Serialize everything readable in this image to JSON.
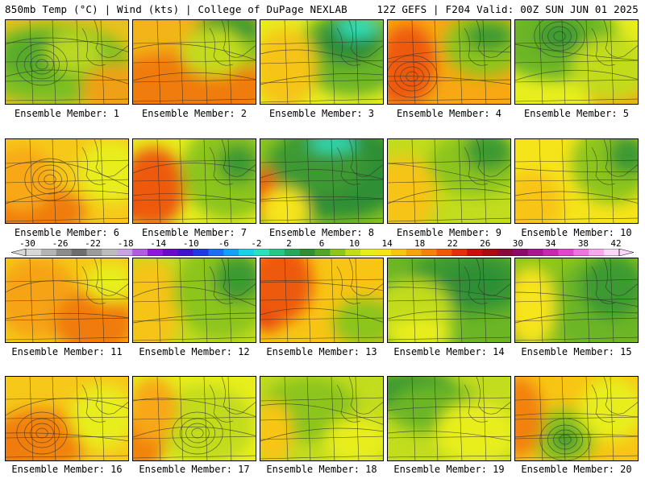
{
  "header": {
    "left_title": "850mb Temp (°C) | Wind (kts) | College of DuPage NEXLAB",
    "right_title": "12Z GEFS | F204 Valid: 00Z SUN JUN 01 2025"
  },
  "colorbar": {
    "ticks": [
      "-30",
      "-26",
      "-22",
      "-18",
      "-14",
      "-10",
      "-6",
      "-2",
      "2",
      "6",
      "10",
      "14",
      "18",
      "22",
      "26",
      "30",
      "34",
      "38",
      "42"
    ],
    "colors": [
      "#d8d8d8",
      "#b4b4b4",
      "#8c8c8c",
      "#6e6e6e",
      "#9b9b9b",
      "#bdbdbd",
      "#c9a3e6",
      "#b15de0",
      "#8f19d6",
      "#6b0bc8",
      "#3f14c8",
      "#1f3be0",
      "#1a6ef0",
      "#15a0f5",
      "#1bd0e6",
      "#2de0bb",
      "#29c68a",
      "#27a85c",
      "#2f8f34",
      "#54a628",
      "#8cc51e",
      "#c2dc1e",
      "#e8ee1e",
      "#f6e41a",
      "#f8c514",
      "#f6a312",
      "#f2820e",
      "#ee5a0c",
      "#e3300c",
      "#c8100e",
      "#a60c10",
      "#8a0a3a",
      "#8c0b6a",
      "#a51890",
      "#c42ab0",
      "#dd48cc",
      "#ee74e0",
      "#f7a8ee",
      "#fcd6f8"
    ]
  },
  "panels": [
    {
      "label": "Ensemble Member: 1",
      "bg": "#e8c21c",
      "blobs": [
        [
          "#7cbf22",
          60,
          55,
          95,
          50
        ],
        [
          "#56ab2a",
          40,
          45,
          45,
          30
        ],
        [
          "#f0a012",
          135,
          85,
          40,
          30
        ],
        [
          "#b8d820",
          85,
          40,
          35,
          25
        ]
      ],
      "lows": [
        [
          45,
          55
        ]
      ]
    },
    {
      "label": "Ensemble Member: 2",
      "bg": "#f2b418",
      "blobs": [
        [
          "#f07c10",
          60,
          85,
          110,
          45
        ],
        [
          "#8cc51e",
          125,
          25,
          45,
          35
        ],
        [
          "#3d9a30",
          120,
          10,
          40,
          22
        ],
        [
          "#c2dc1e",
          100,
          40,
          40,
          30
        ]
      ],
      "lows": []
    },
    {
      "label": "Ensemble Member: 3",
      "bg": "#e8ee1e",
      "blobs": [
        [
          "#6cb626",
          115,
          40,
          70,
          55
        ],
        [
          "#2f8f34",
          110,
          25,
          40,
          30
        ],
        [
          "#2de0bb",
          120,
          10,
          25,
          12
        ],
        [
          "#f6c414",
          30,
          60,
          40,
          50
        ]
      ],
      "lows": []
    },
    {
      "label": "Ensemble Member: 4",
      "bg": "#f8a812",
      "blobs": [
        [
          "#e3300c",
          15,
          75,
          25,
          30
        ],
        [
          "#ee5a0c",
          25,
          55,
          35,
          50
        ],
        [
          "#8cc51e",
          120,
          30,
          50,
          40
        ],
        [
          "#3d9a30",
          125,
          20,
          30,
          18
        ]
      ],
      "lows": [
        [
          30,
          70
        ]
      ]
    },
    {
      "label": "Ensemble Member: 5",
      "bg": "#e8ee1e",
      "blobs": [
        [
          "#6cb626",
          50,
          25,
          80,
          50
        ],
        [
          "#3d9a30",
          55,
          20,
          30,
          20
        ],
        [
          "#f2a612",
          130,
          90,
          40,
          30
        ],
        [
          "#c2dc1e",
          120,
          60,
          50,
          40
        ]
      ],
      "lows": [
        [
          55,
          20
        ]
      ]
    },
    {
      "label": "Ensemble Member: 6",
      "bg": "#f6c81a",
      "blobs": [
        [
          "#e3300c",
          0,
          85,
          25,
          30
        ],
        [
          "#f07c10",
          40,
          90,
          60,
          30
        ],
        [
          "#f8a812",
          20,
          50,
          40,
          40
        ],
        [
          "#e8ee1e",
          130,
          40,
          40,
          40
        ]
      ],
      "lows": [
        [
          55,
          50
        ]
      ]
    },
    {
      "label": "Ensemble Member: 7",
      "bg": "#e8ee1e",
      "blobs": [
        [
          "#c8100e",
          5,
          70,
          25,
          35
        ],
        [
          "#ee5a0c",
          25,
          60,
          40,
          50
        ],
        [
          "#8cc51e",
          120,
          40,
          60,
          60
        ],
        [
          "#3d9a30",
          130,
          30,
          25,
          25
        ]
      ],
      "lows": []
    },
    {
      "label": "Ensemble Member: 8",
      "bg": "#8cc51e",
      "blobs": [
        [
          "#2f8f34",
          95,
          40,
          90,
          60
        ],
        [
          "#3d9a30",
          70,
          30,
          60,
          40
        ],
        [
          "#2de0bb",
          90,
          5,
          30,
          10
        ],
        [
          "#ee5a0c",
          5,
          70,
          18,
          35
        ],
        [
          "#f6e41a",
          30,
          90,
          30,
          30
        ]
      ],
      "lows": []
    },
    {
      "label": "Ensemble Member: 9",
      "bg": "#c2dc1e",
      "blobs": [
        [
          "#f6c414",
          20,
          70,
          40,
          50
        ],
        [
          "#8cc51e",
          110,
          30,
          60,
          40
        ],
        [
          "#3d9a30",
          125,
          15,
          30,
          25
        ]
      ],
      "lows": []
    },
    {
      "label": "Ensemble Member: 10",
      "bg": "#f6e41a",
      "blobs": [
        [
          "#8cc51e",
          120,
          30,
          50,
          50
        ],
        [
          "#3d9a30",
          140,
          20,
          25,
          25
        ],
        [
          "#f8c514",
          20,
          80,
          40,
          40
        ]
      ],
      "lows": []
    },
    {
      "label": "Ensemble Member: 11",
      "bg": "#f6c814",
      "blobs": [
        [
          "#f6a312",
          40,
          50,
          50,
          50
        ],
        [
          "#f07c10",
          110,
          80,
          50,
          40
        ],
        [
          "#e8ee1e",
          130,
          30,
          30,
          25
        ]
      ],
      "lows": []
    },
    {
      "label": "Ensemble Member: 12",
      "bg": "#c2dc1e",
      "blobs": [
        [
          "#f6c414",
          20,
          60,
          40,
          60
        ],
        [
          "#8cc51e",
          110,
          40,
          60,
          60
        ],
        [
          "#3d9a30",
          130,
          25,
          30,
          30
        ]
      ],
      "lows": []
    },
    {
      "label": "Ensemble Member: 13",
      "bg": "#f8c514",
      "blobs": [
        [
          "#e3300c",
          10,
          40,
          30,
          50
        ],
        [
          "#ee5a0c",
          25,
          30,
          40,
          50
        ],
        [
          "#8cc51e",
          130,
          80,
          40,
          30
        ]
      ],
      "lows": []
    },
    {
      "label": "Ensemble Member: 14",
      "bg": "#6cb626",
      "blobs": [
        [
          "#3d9a30",
          100,
          30,
          80,
          40
        ],
        [
          "#2f8f34",
          110,
          30,
          40,
          25
        ],
        [
          "#c2dc1e",
          30,
          70,
          50,
          45
        ],
        [
          "#e8ee1e",
          40,
          95,
          40,
          20
        ]
      ],
      "lows": []
    },
    {
      "label": "Ensemble Member: 15",
      "bg": "#8cc51e",
      "blobs": [
        [
          "#6cb626",
          110,
          60,
          70,
          60
        ],
        [
          "#3d9a30",
          120,
          35,
          40,
          40
        ],
        [
          "#e3300c",
          0,
          60,
          15,
          40
        ],
        [
          "#f6e41a",
          20,
          60,
          30,
          50
        ]
      ],
      "lows": []
    },
    {
      "label": "Ensemble Member: 16",
      "bg": "#f6c81a",
      "blobs": [
        [
          "#f2820e",
          40,
          80,
          60,
          40
        ],
        [
          "#e8ee1e",
          120,
          50,
          40,
          40
        ],
        [
          "#f07c10",
          0,
          90,
          30,
          30
        ]
      ],
      "lows": [
        [
          45,
          70
        ]
      ]
    },
    {
      "label": "Ensemble Member: 17",
      "bg": "#e8ee1e",
      "blobs": [
        [
          "#c2dc1e",
          90,
          60,
          60,
          50
        ],
        [
          "#f2820e",
          10,
          80,
          30,
          40
        ],
        [
          "#f8a812",
          25,
          40,
          30,
          40
        ]
      ],
      "lows": [
        [
          80,
          70
        ]
      ]
    },
    {
      "label": "Ensemble Member: 18",
      "bg": "#c2dc1e",
      "blobs": [
        [
          "#8cc51e",
          60,
          40,
          60,
          40
        ],
        [
          "#f8c514",
          15,
          70,
          25,
          40
        ],
        [
          "#e8ee1e",
          120,
          80,
          40,
          30
        ]
      ],
      "lows": []
    },
    {
      "label": "Ensemble Member: 19",
      "bg": "#c2dc1e",
      "blobs": [
        [
          "#3d9a30",
          30,
          20,
          60,
          30
        ],
        [
          "#6cb626",
          60,
          40,
          60,
          30
        ],
        [
          "#e8ee1e",
          110,
          70,
          50,
          40
        ]
      ],
      "lows": []
    },
    {
      "label": "Ensemble Member: 20",
      "bg": "#f8c514",
      "blobs": [
        [
          "#8cc51e",
          60,
          75,
          40,
          35
        ],
        [
          "#3d9a30",
          62,
          78,
          18,
          14
        ],
        [
          "#e8ee1e",
          120,
          40,
          40,
          40
        ],
        [
          "#f2820e",
          5,
          50,
          30,
          50
        ]
      ],
      "lows": [
        [
          62,
          78
        ]
      ]
    }
  ]
}
